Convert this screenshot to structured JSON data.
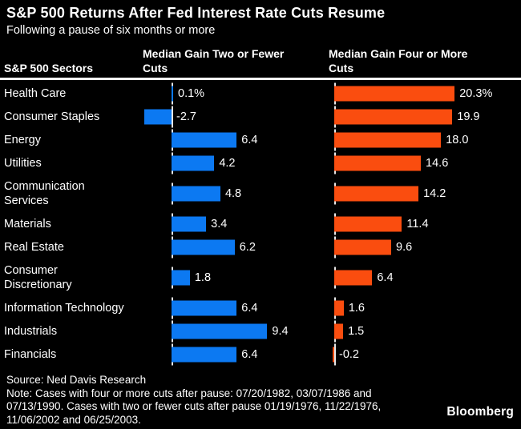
{
  "title": "S&P 500 Returns After Fed Interest Rate Cuts Resume",
  "subtitle": "Following a pause of six months or more",
  "columns": {
    "sectors": "S&P 500 Sectors",
    "left": "Median Gain Two or Fewer Cuts",
    "right": "Median Gain Four or More Cuts"
  },
  "chart_data": {
    "type": "bar",
    "orientation": "horizontal",
    "categories": [
      "Health Care",
      "Consumer Staples",
      "Energy",
      "Utilities",
      "Communication Services",
      "Materials",
      "Real Estate",
      "Consumer Discretionary",
      "Information Technology",
      "Industrials",
      "Financials"
    ],
    "two_line_categories": [
      "Communication Services",
      "Consumer Discretionary"
    ],
    "series": [
      {
        "name": "Median Gain Two or Fewer Cuts",
        "color": "#0c79f2",
        "values": [
          0.1,
          -2.7,
          6.4,
          4.2,
          4.8,
          3.4,
          6.2,
          1.8,
          6.4,
          9.4,
          6.4
        ],
        "labels": [
          "0.1%",
          "-2.7",
          "6.4",
          "4.2",
          "4.8",
          "3.4",
          "6.2",
          "1.8",
          "6.4",
          "9.4",
          "6.4"
        ]
      },
      {
        "name": "Median Gain Four or More Cuts",
        "color": "#fa4d0f",
        "values": [
          20.3,
          19.9,
          18.0,
          14.6,
          14.2,
          11.4,
          9.6,
          6.4,
          1.6,
          1.5,
          -0.2
        ],
        "labels": [
          "20.3%",
          "19.9",
          "18.0",
          "14.6",
          "14.2",
          "11.4",
          "9.6",
          "6.4",
          "1.6",
          "1.5",
          "-0.2"
        ]
      }
    ],
    "value_suffix_first_row": "%",
    "xlim_left": [
      -3,
      10
    ],
    "xlim_right": [
      -1,
      21
    ],
    "grid": "off",
    "legend_position": "column-headers"
  },
  "colors": {
    "background": "#000000",
    "text": "#ffffff",
    "rule": "#ffffff",
    "axis_tick": "#e6e6e6",
    "bar_blue": "#0c79f2",
    "bar_orange": "#fa4d0f"
  },
  "footer": {
    "source": "Source: Ned Davis Research",
    "note": "Note: Cases with four or more cuts after pause: 07/20/1982, 03/07/1986 and 07/13/1990. Cases with two or fewer cuts after pause 01/19/1976, 11/22/1976, 11/06/2002 and 06/25/2003.",
    "brand": "Bloomberg"
  }
}
